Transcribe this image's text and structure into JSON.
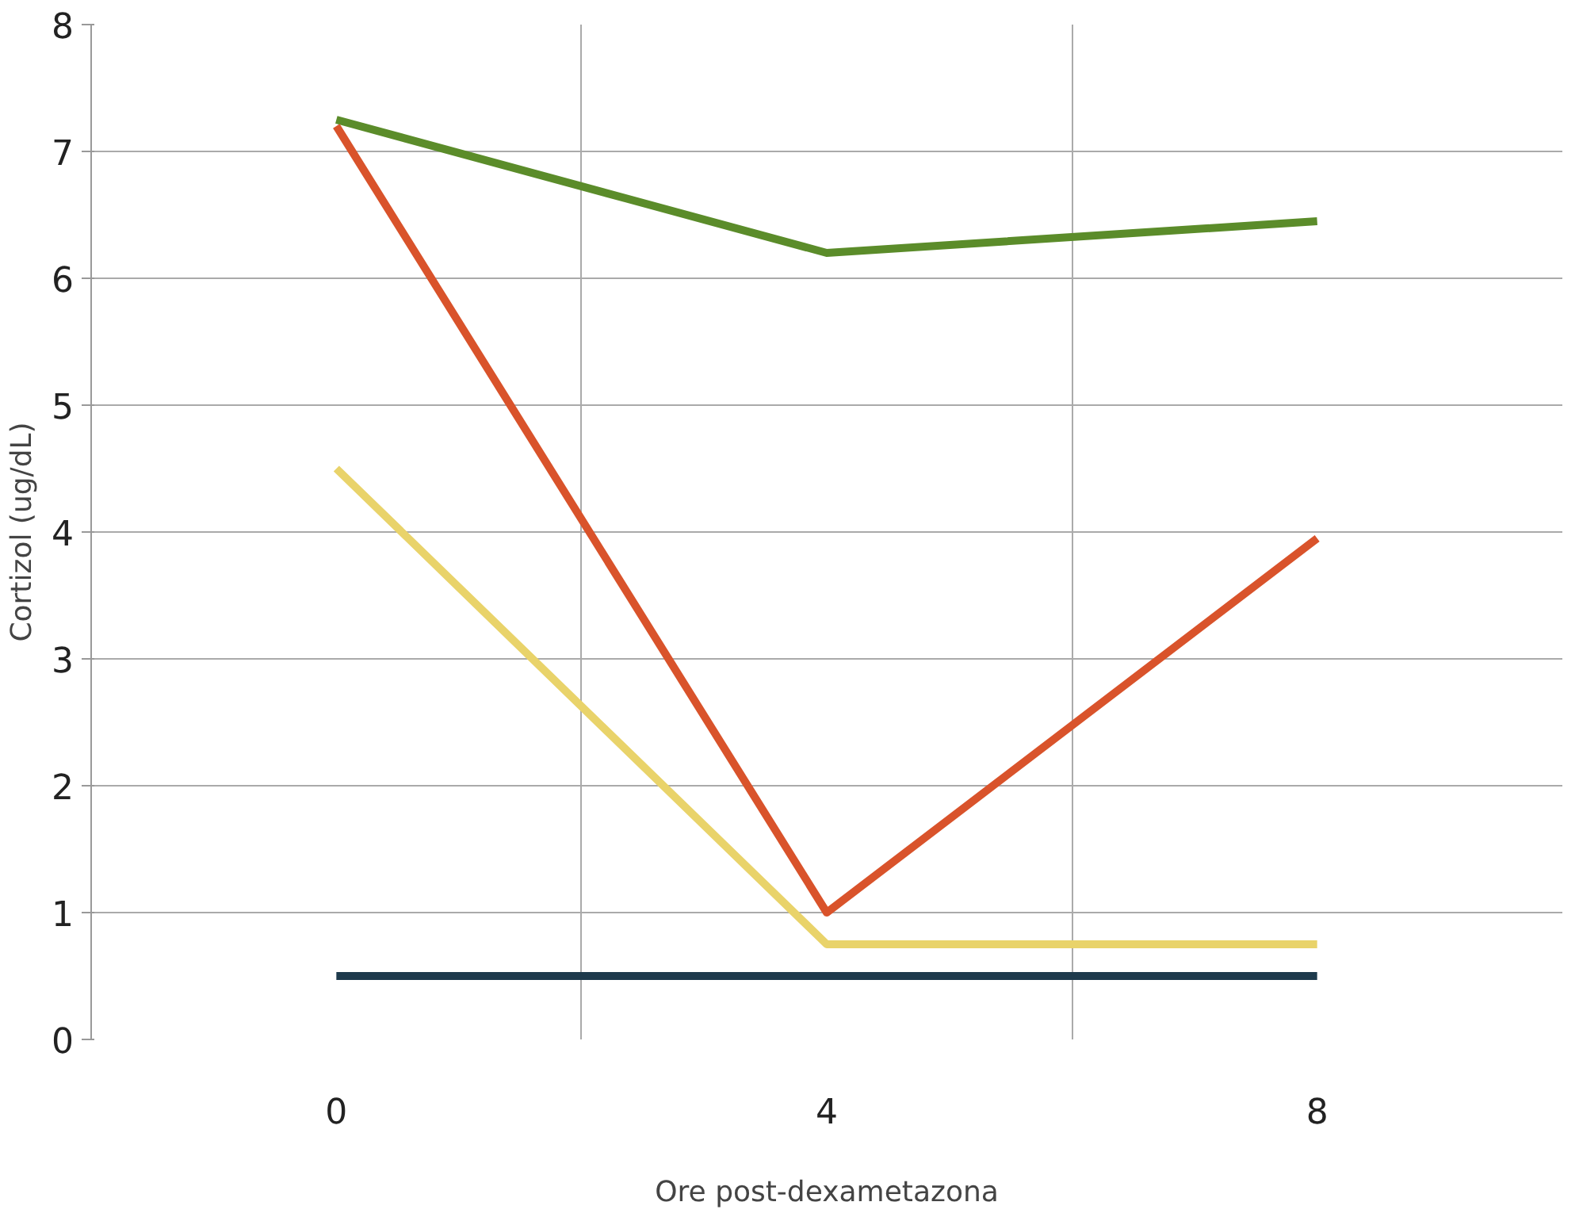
{
  "chart_data": {
    "type": "line",
    "xlabel": "Ore post-dexametazona",
    "ylabel": "Cortizol (ug/dL)",
    "categories": [
      "0",
      "4",
      "8"
    ],
    "series": [
      {
        "color": "#5b8c2a",
        "values": [
          7.25,
          6.2,
          6.45
        ]
      },
      {
        "color": "#d9532b",
        "values": [
          7.2,
          1.0,
          3.95
        ]
      },
      {
        "color": "#e9d36a",
        "values": [
          4.5,
          0.75,
          0.75
        ]
      },
      {
        "color": "#1e3a4c",
        "values": [
          0.5,
          0.5,
          0.5
        ]
      }
    ],
    "ylim": [
      0,
      8
    ],
    "yticks": [
      0,
      1,
      2,
      3,
      4,
      5,
      6,
      7,
      8
    ],
    "grid": true,
    "marker": "none",
    "line_style": "solid"
  }
}
